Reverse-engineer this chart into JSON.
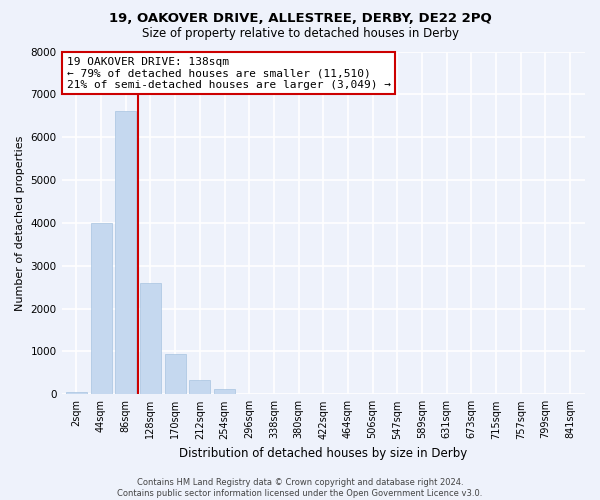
{
  "title": "19, OAKOVER DRIVE, ALLESTREE, DERBY, DE22 2PQ",
  "subtitle": "Size of property relative to detached houses in Derby",
  "xlabel": "Distribution of detached houses by size in Derby",
  "ylabel": "Number of detached properties",
  "bar_labels": [
    "2sqm",
    "44sqm",
    "86sqm",
    "128sqm",
    "170sqm",
    "212sqm",
    "254sqm",
    "296sqm",
    "338sqm",
    "380sqm",
    "422sqm",
    "464sqm",
    "506sqm",
    "547sqm",
    "589sqm",
    "631sqm",
    "673sqm",
    "715sqm",
    "757sqm",
    "799sqm",
    "841sqm"
  ],
  "bar_values": [
    50,
    4000,
    6600,
    2600,
    950,
    330,
    120,
    0,
    0,
    0,
    0,
    0,
    0,
    0,
    0,
    0,
    0,
    0,
    0,
    0,
    0
  ],
  "bar_color": "#c5d8ef",
  "bar_edge_color": "#a8c4e0",
  "vline_x": 2.5,
  "vline_color": "#cc0000",
  "ylim": [
    0,
    8000
  ],
  "yticks": [
    0,
    1000,
    2000,
    3000,
    4000,
    5000,
    6000,
    7000,
    8000
  ],
  "annotation_line1": "19 OAKOVER DRIVE: 138sqm",
  "annotation_line2": "← 79% of detached houses are smaller (11,510)",
  "annotation_line3": "21% of semi-detached houses are larger (3,049) →",
  "annotation_box_color": "#ffffff",
  "annotation_box_edge": "#cc0000",
  "footer": "Contains HM Land Registry data © Crown copyright and database right 2024.\nContains public sector information licensed under the Open Government Licence v3.0.",
  "bg_color": "#eef2fb",
  "grid_color": "#ffffff",
  "title_fontsize": 9.5,
  "subtitle_fontsize": 8.5,
  "ylabel_fontsize": 8,
  "xlabel_fontsize": 8.5,
  "tick_fontsize": 7,
  "ytick_fontsize": 7.5,
  "annotation_fontsize": 8,
  "footer_fontsize": 6
}
